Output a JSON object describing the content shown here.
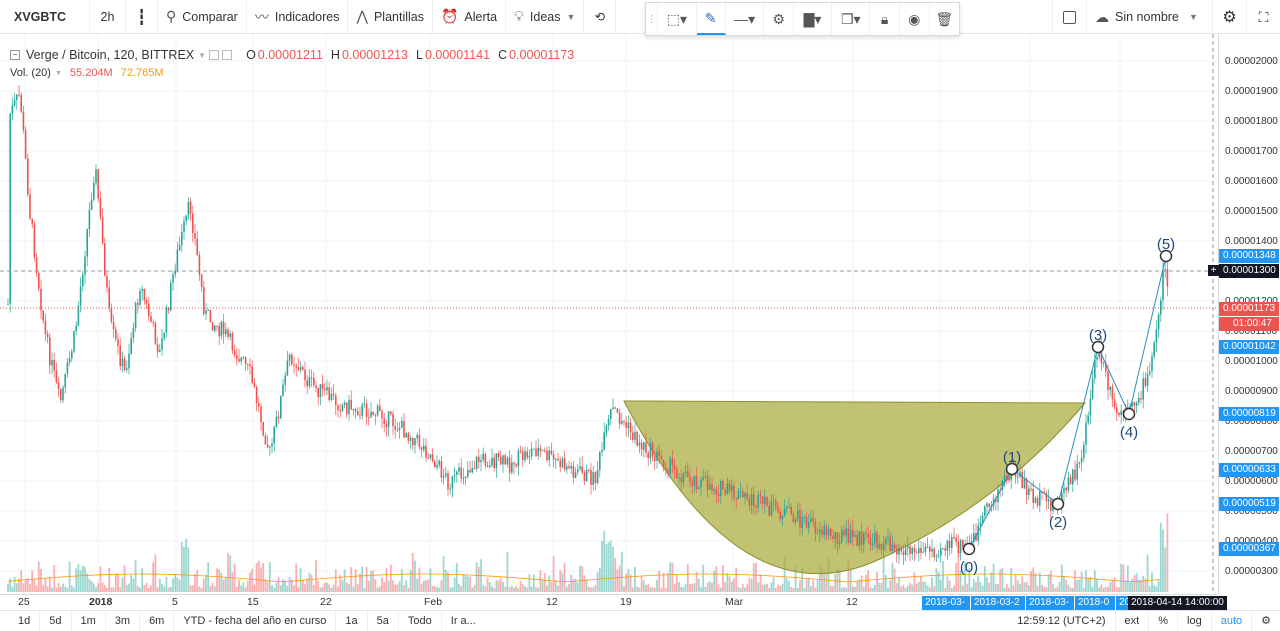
{
  "toolbar": {
    "symbol": "XVGBTC",
    "interval": "2h",
    "compare_label": "Comparar",
    "indicators_label": "Indicadores",
    "templates_label": "Plantillas",
    "alert_label": "Alerta",
    "ideas_label": "Ideas",
    "layout_name": "Sin nombre"
  },
  "legend": {
    "title": "Verge / Bitcoin, 120, BITTREX",
    "open_key": "O",
    "open": "0.00001211",
    "high_key": "H",
    "high": "0.00001213",
    "low_key": "L",
    "low": "0.00001141",
    "close_key": "C",
    "close": "0.00001173",
    "vol_label": "Vol. (20)",
    "vol_value": "55.204M",
    "vol_ma": "72.765M"
  },
  "price_axis": {
    "ticks": [
      "0.00002000",
      "0.00001900",
      "0.00001800",
      "0.00001700",
      "0.00001600",
      "0.00001500",
      "0.00001400",
      "0.00001200",
      "0.00001100",
      "0.00001000",
      "0.00000900",
      "0.00000800",
      "0.00000700",
      "0.00000600",
      "0.00000500",
      "0.00000400",
      "0.00000300"
    ],
    "tags": {
      "t1348": "0.00001348",
      "t1300": "0.00001300",
      "t1173": "0.00001173",
      "countdown": "01:00:47",
      "t1042": "0.00001042",
      "t819": "0.00000819",
      "t633": "0.00000633",
      "t519": "0.00000519",
      "t367": "0.00000367"
    }
  },
  "time_axis": {
    "labels": [
      "25",
      "2018",
      "5",
      "15",
      "22",
      "Feb",
      "12",
      "19",
      "Mar",
      "12"
    ],
    "tags": [
      "2018-03-",
      "2018-03-2",
      "2018-03-",
      "2018-0",
      "2018-04",
      "2018-04-14 14:00:00"
    ]
  },
  "waves": [
    "(0)",
    "(1)",
    "(2)",
    "(3)",
    "(4)",
    "(5)"
  ],
  "bottombar": {
    "ranges": [
      "1d",
      "5d",
      "1m",
      "3m",
      "6m",
      "YTD - fecha del año en curso",
      "1a",
      "5a",
      "Todo",
      "Ir a..."
    ],
    "clock": "12:59:12 (UTC+2)",
    "ext": "ext",
    "percent": "%",
    "log": "log",
    "auto": "auto"
  },
  "colors": {
    "up": "#26a69a",
    "down": "#ef5350",
    "cup_fill": "#a9aa3c",
    "wave_line": "#2a8fc0",
    "price_tag_blue": "#2196f3",
    "last_price_red": "#ef5350"
  }
}
